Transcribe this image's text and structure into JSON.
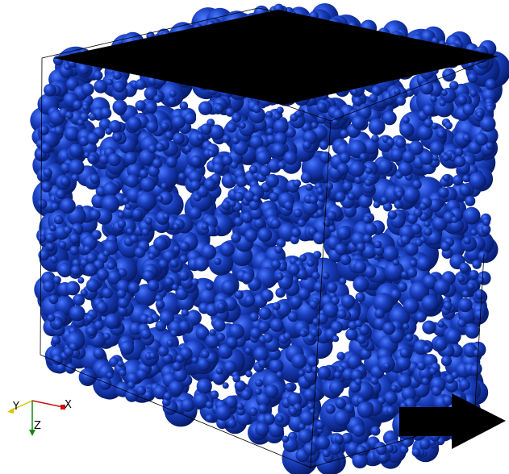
{
  "scene": {
    "subject": "particle-packing-cube",
    "particle_color": "#1a3fbf",
    "particle_highlight": "#3a66ff",
    "particle_shadow": "#061a66",
    "top_platen_color": "#000000",
    "arrow_color": "#000000",
    "bounding_box_color": "#000000"
  },
  "axes_triad": {
    "x_label": "X",
    "y_label": "Y",
    "z_label": "Z",
    "x_color": "#d01010",
    "y_color": "#d8c400",
    "z_color": "#108a10"
  },
  "arrow": {
    "direction": "right",
    "icon": "right-arrow-icon"
  }
}
